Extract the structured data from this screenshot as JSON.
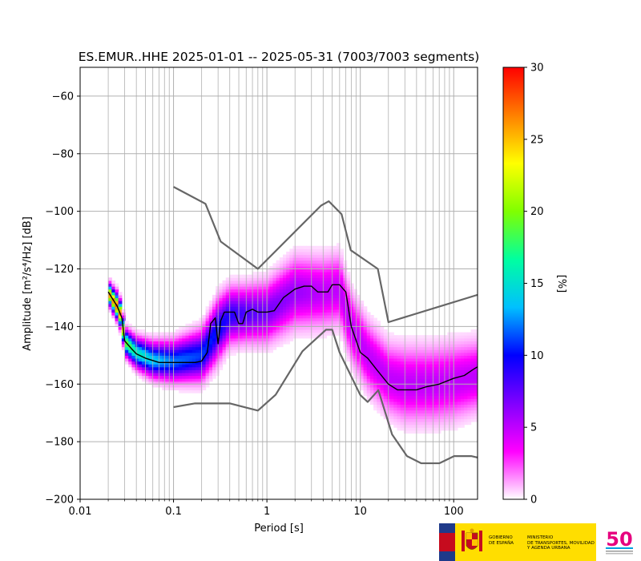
{
  "chart_data": {
    "type": "heatmap",
    "title": "ES.EMUR..HHE   2025-01-01 -- 2025-05-31  (7003/7003 segments)",
    "xlabel": "Period [s]",
    "ylabel": "Amplitude [m²/s⁴/Hz] [dB]",
    "x_scale": "log",
    "xlim": [
      0.01,
      180
    ],
    "ylim": [
      -200,
      -50
    ],
    "x_tick_labels": [
      "0.01",
      "0.1",
      "1",
      "10",
      "100"
    ],
    "y_tick_labels": [
      "−60",
      "−80",
      "−100",
      "−120",
      "−140",
      "−160",
      "−180",
      "−200"
    ],
    "y_ticks": [
      -60,
      -80,
      -100,
      -120,
      -140,
      -160,
      -180,
      -200
    ],
    "grid": true,
    "colorbar": {
      "label": "[%]",
      "range": [
        0,
        30
      ],
      "ticks": [
        0,
        5,
        10,
        15,
        20,
        25,
        30
      ],
      "tick_labels": [
        "0",
        "5",
        "10",
        "15",
        "20",
        "25",
        "30"
      ],
      "colormap": [
        "#ffffff",
        "#ff00ff",
        "#8000ff",
        "#0000ff",
        "#00c0ff",
        "#00ffa0",
        "#80ff00",
        "#ffff00",
        "#ff8000",
        "#ff0000"
      ]
    },
    "new_high_noise_model": {
      "x": [
        0.1,
        0.22,
        0.32,
        0.8,
        3.8,
        4.6,
        6.3,
        7.9,
        15.4,
        20,
        180
      ],
      "y": [
        -91.5,
        -97.4,
        -110.5,
        -120,
        -98,
        -96.5,
        -101,
        -113.5,
        -120,
        -138.5,
        -129
      ]
    },
    "new_low_noise_model": {
      "x": [
        0.1,
        0.17,
        0.4,
        0.8,
        1.24,
        2.4,
        4.3,
        5,
        6,
        10,
        12,
        15.6,
        21.9,
        31.6,
        45,
        70,
        101,
        154,
        180
      ],
      "y": [
        -168,
        -166.7,
        -166.7,
        -169.2,
        -163.7,
        -148.6,
        -141.1,
        -141.1,
        -149,
        -163.8,
        -166.2,
        -162.1,
        -177.5,
        -185,
        -187.5,
        -187.5,
        -185,
        -185,
        -185.5
      ]
    },
    "mean_curve": {
      "x": [
        0.02,
        0.025,
        0.028,
        0.03,
        0.035,
        0.04,
        0.05,
        0.07,
        0.1,
        0.15,
        0.17,
        0.2,
        0.23,
        0.25,
        0.28,
        0.3,
        0.32,
        0.35,
        0.38,
        0.4,
        0.45,
        0.5,
        0.55,
        0.6,
        0.7,
        0.8,
        1.0,
        1.2,
        1.5,
        2.0,
        2.5,
        3.0,
        3.5,
        4.0,
        4.5,
        5.0,
        6.0,
        7.0,
        8.0,
        10,
        12,
        15,
        20,
        25,
        30,
        40,
        50,
        70,
        100,
        130,
        160,
        180
      ],
      "y": [
        -128,
        -133,
        -137,
        -145,
        -147.5,
        -149.5,
        -151,
        -152.5,
        -152.5,
        -152.5,
        -152.5,
        -152,
        -149,
        -139,
        -137,
        -146,
        -138,
        -135,
        -135,
        -135,
        -135,
        -139,
        -139,
        -135,
        -134,
        -135,
        -135,
        -134.5,
        -130,
        -127,
        -126,
        -126,
        -128,
        -128,
        -128,
        -125.5,
        -125.5,
        -128,
        -140,
        -149,
        -151,
        -155,
        -160,
        -162,
        -162,
        -162,
        -161,
        -160,
        -158,
        -157,
        -155,
        -154
      ]
    },
    "density": [
      {
        "x": 0.02,
        "mode": -128,
        "spread": 2,
        "peak": 26
      },
      {
        "x": 0.025,
        "mode": -133,
        "spread": 2.5,
        "peak": 28
      },
      {
        "x": 0.028,
        "mode": -137,
        "spread": 2.5,
        "peak": 26
      },
      {
        "x": 0.03,
        "mode": -145,
        "spread": 2.5,
        "peak": 20
      },
      {
        "x": 0.04,
        "mode": -149,
        "spread": 3,
        "peak": 16
      },
      {
        "x": 0.06,
        "mode": -151.5,
        "spread": 3.5,
        "peak": 14
      },
      {
        "x": 0.1,
        "mode": -152,
        "spread": 4,
        "peak": 12
      },
      {
        "x": 0.2,
        "mode": -150,
        "spread": 5,
        "peak": 11
      },
      {
        "x": 0.3,
        "mode": -141,
        "spread": 6,
        "peak": 10
      },
      {
        "x": 0.4,
        "mode": -136,
        "spread": 5.5,
        "peak": 9
      },
      {
        "x": 0.6,
        "mode": -135.5,
        "spread": 5.5,
        "peak": 8
      },
      {
        "x": 1.0,
        "mode": -135,
        "spread": 6,
        "peak": 7
      },
      {
        "x": 2.0,
        "mode": -128,
        "spread": 7,
        "peak": 6
      },
      {
        "x": 4.0,
        "mode": -128,
        "spread": 7,
        "peak": 5
      },
      {
        "x": 6.0,
        "mode": -127,
        "spread": 7,
        "peak": 5
      },
      {
        "x": 8.0,
        "mode": -140,
        "spread": 7,
        "peak": 5
      },
      {
        "x": 12,
        "mode": -150,
        "spread": 7,
        "peak": 5
      },
      {
        "x": 20,
        "mode": -158,
        "spread": 7,
        "peak": 5
      },
      {
        "x": 30,
        "mode": -160,
        "spread": 7.5,
        "peak": 5
      },
      {
        "x": 60,
        "mode": -160,
        "spread": 7.5,
        "peak": 5
      },
      {
        "x": 100,
        "mode": -159,
        "spread": 7.5,
        "peak": 5
      },
      {
        "x": 180,
        "mode": -157,
        "spread": 7,
        "peak": 5
      }
    ]
  },
  "footer": {
    "gov_line1": "GOBIERNO\nDE ESPAÑA",
    "gov_line2": "MINISTERIO\nDE TRANSPORTES, MOVILIDAD\nY AGENDA URBANA",
    "ign_logo_text": "50"
  }
}
